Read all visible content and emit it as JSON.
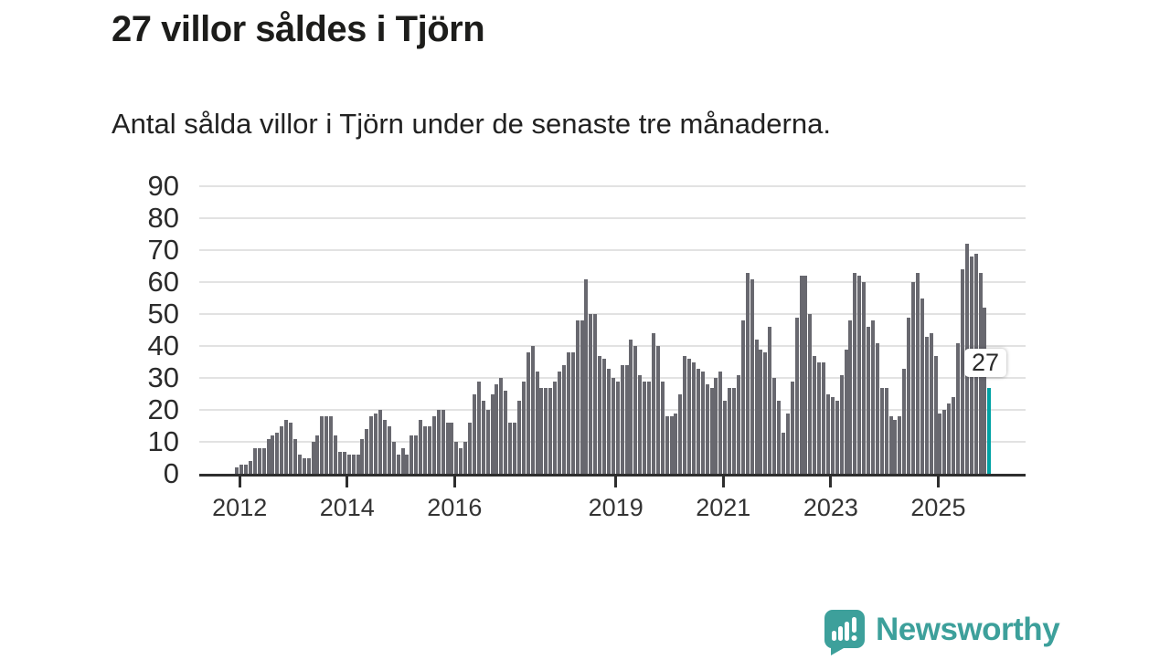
{
  "header": {
    "title": "27 villor såldes i Tjörn",
    "subtitle": "Antal sålda villor i Tjörn under de senaste tre månaderna."
  },
  "chart_data": {
    "type": "bar",
    "title": "27 villor såldes i Tjörn",
    "subtitle": "Antal sålda villor i Tjörn under de senaste tre månaderna.",
    "unit": "antal sålda villor (rullande tre månader)",
    "start_month": "2011-12",
    "end_month": "2025-12",
    "values": [
      2,
      3,
      3,
      4,
      8,
      8,
      8,
      11,
      12,
      13,
      15,
      17,
      16,
      11,
      6,
      5,
      5,
      10,
      12,
      18,
      18,
      18,
      12,
      7,
      7,
      6,
      6,
      6,
      11,
      14,
      18,
      19,
      20,
      17,
      15,
      10,
      6,
      8,
      6,
      12,
      12,
      17,
      15,
      15,
      18,
      20,
      20,
      16,
      16,
      10,
      8,
      10,
      16,
      25,
      29,
      23,
      20,
      25,
      28,
      30,
      26,
      16,
      16,
      23,
      29,
      38,
      40,
      32,
      27,
      27,
      27,
      29,
      32,
      34,
      38,
      38,
      48,
      48,
      61,
      50,
      50,
      37,
      36,
      33,
      30,
      29,
      34,
      34,
      42,
      40,
      31,
      29,
      29,
      44,
      40,
      29,
      18,
      18,
      19,
      25,
      37,
      36,
      35,
      33,
      32,
      28,
      27,
      30,
      32,
      23,
      27,
      27,
      31,
      48,
      63,
      61,
      42,
      39,
      38,
      46,
      30,
      23,
      13,
      19,
      29,
      49,
      62,
      62,
      50,
      37,
      35,
      35,
      25,
      24,
      23,
      31,
      39,
      48,
      63,
      62,
      60,
      46,
      48,
      41,
      27,
      27,
      18,
      17,
      18,
      33,
      49,
      60,
      63,
      55,
      43,
      44,
      37,
      19,
      20,
      22,
      24,
      41,
      64,
      72,
      68,
      69,
      63,
      52,
      27
    ],
    "highlight_last": true,
    "highlight_value": 27,
    "highlight_label": "27",
    "ylim": [
      0,
      90
    ],
    "y_ticks": [
      0,
      10,
      20,
      30,
      40,
      50,
      60,
      70,
      80,
      90
    ],
    "x_ticks": [
      {
        "label": "2012",
        "month_index": 1
      },
      {
        "label": "2014",
        "month_index": 25
      },
      {
        "label": "2016",
        "month_index": 49
      },
      {
        "label": "2019",
        "month_index": 85
      },
      {
        "label": "2021",
        "month_index": 109
      },
      {
        "label": "2023",
        "month_index": 133
      },
      {
        "label": "2025",
        "month_index": 157
      }
    ],
    "grid": true,
    "legend": "none",
    "colors": {
      "bar": "#68686f",
      "highlight": "#00a2a4",
      "grid": "#e2e2e2",
      "axis": "#2e2e2e",
      "tick_label": "#333333",
      "y_label": "#2b2b2b"
    }
  },
  "annotation": {
    "label": "27"
  },
  "footer": {
    "brand": "Newsworthy",
    "brand_color": "#3da09b"
  }
}
